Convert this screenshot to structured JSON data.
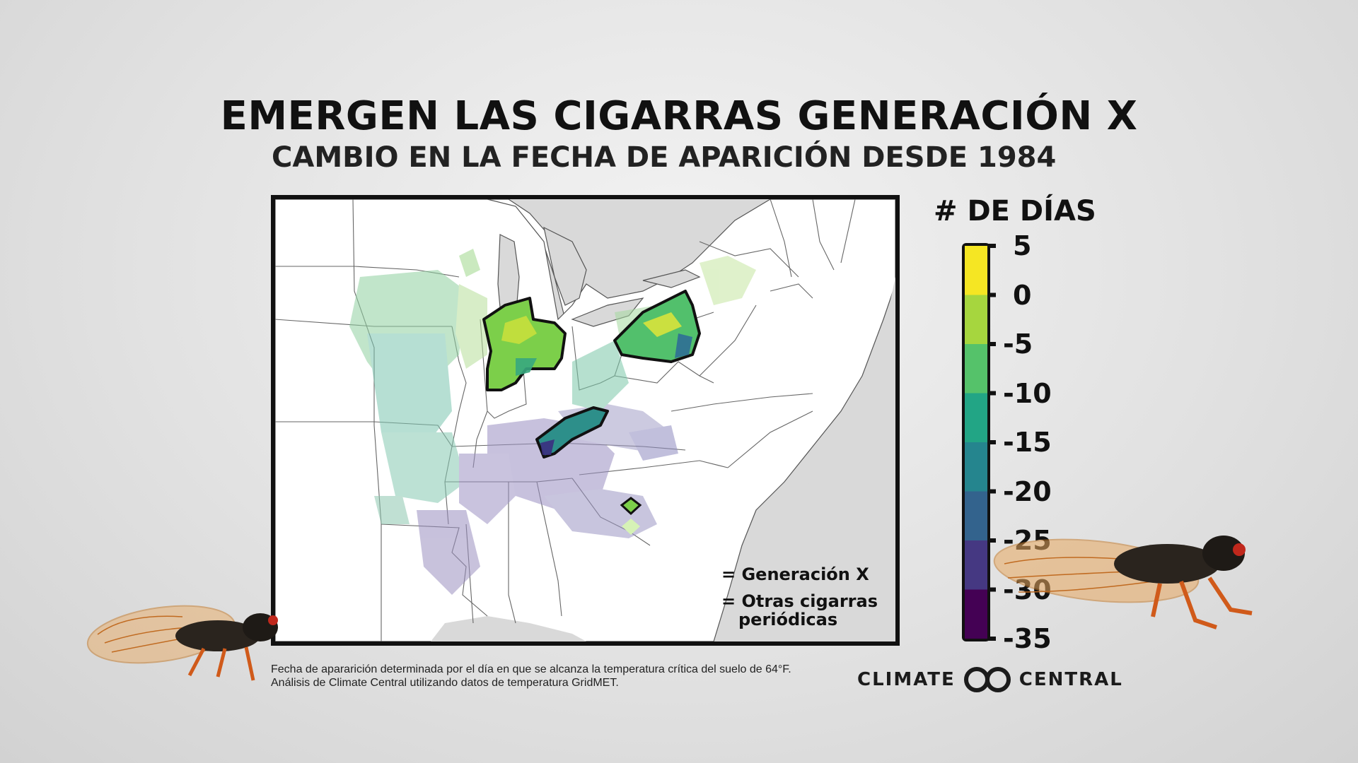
{
  "title": "EMERGEN LAS CIGARRAS GENERACIÓN X",
  "subtitle": "CAMBIO EN LA FECHA DE APARICIÓN DESDE 1984",
  "map": {
    "legend": {
      "genx_label": "= Generación X",
      "other_label_line1": "= Otras cigarras",
      "other_label_line2": "periódicas"
    }
  },
  "colorbar": {
    "title": "# DE DÍAS",
    "ticks": [
      "5",
      "0",
      "-5",
      "-10",
      "-15",
      "-20",
      "-25",
      "-30",
      "-35"
    ],
    "bands": [
      {
        "range": "0 to 5",
        "color": "#f5e623"
      },
      {
        "range": "-5 to 0",
        "color": "#a6d63e"
      },
      {
        "range": "-10 to -5",
        "color": "#55c26a"
      },
      {
        "range": "-15 to -10",
        "color": "#22a585"
      },
      {
        "range": "-20 to -15",
        "color": "#25858e"
      },
      {
        "range": "-25 to -20",
        "color": "#33638d"
      },
      {
        "range": "-30 to -25",
        "color": "#453882"
      },
      {
        "range": "-35 to -30",
        "color": "#440154"
      }
    ]
  },
  "footnote": {
    "line1": "Fecha de apararición determinada por el día en que se alcanza la temperatura crítica del suelo de 64°F.",
    "line2": "Análisis de Climate Central utilizando datos de temperatura GridMET."
  },
  "logo": {
    "left": "CLIMATE",
    "right": "CENTRAL"
  },
  "icons": [
    "cicada-left-icon",
    "cicada-right-icon",
    "climate-central-logo-icon",
    "genx-diamond-icon",
    "other-cicada-diamond-icon"
  ]
}
